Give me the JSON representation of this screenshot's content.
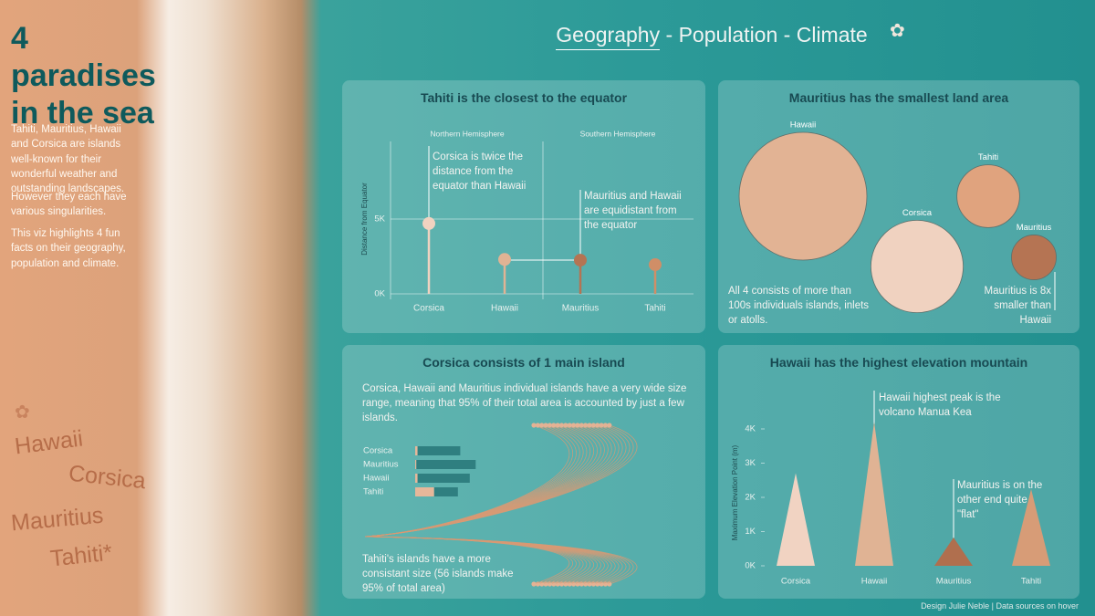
{
  "nav": {
    "items": [
      "Geography",
      "Population",
      "Climate"
    ],
    "separator": "-"
  },
  "sidebar": {
    "title": "4 paradises in the sea",
    "paragraphs": [
      "Tahiti, Mauritius, Hawaii and Corsica are islands well-known for their wonderful weather and outstanding landscapes.",
      "However they each have various singularities.",
      "This viz highlights 4 fun facts on their geography, population and climate."
    ],
    "islands": [
      "Hawaii",
      "Corsica",
      "Mauritius",
      "Tahiti*"
    ]
  },
  "chart_data": [
    {
      "type": "lollipop",
      "title": "Tahiti is the closest to the equator",
      "categories": [
        "Corsica",
        "Hawaii",
        "Mauritius",
        "Tahiti"
      ],
      "values": [
        4700,
        2300,
        2250,
        1950
      ],
      "colors": [
        "#f0d2c0",
        "#e0b394",
        "#b57453",
        "#d08e67"
      ],
      "y_label": "Distance from Equator",
      "ylim": [
        0,
        10000
      ],
      "yticks": [
        {
          "value": 0,
          "label": "0K"
        },
        {
          "value": 5000,
          "label": "5K"
        }
      ],
      "regions": [
        "Northern Hemisphere",
        "Southern Hemisphere"
      ],
      "annotations": [
        "Corsica is twice the distance from the equator than Hawaii",
        "Mauritius and Hawaii are equidistant from the equator"
      ]
    },
    {
      "type": "bubble",
      "title": "Mauritius has the smallest land area",
      "categories": [
        "Hawaii",
        "Tahiti",
        "Corsica",
        "Mauritius"
      ],
      "values": [
        16600,
        4000,
        8680,
        2040
      ],
      "colors": [
        "#e2b394",
        "#e0a37e",
        "#f0d2c0",
        "#b57453"
      ],
      "annotations": [
        "All 4 consists of more than 100s individuals islands, inlets or atolls.",
        "Mauritius is 8x smaller than Hawaii"
      ]
    },
    {
      "type": "bar",
      "title": "Corsica consists of 1 main island",
      "subtitle": "Corsica, Hawaii and Mauritius individual islands have a very wide size range, meaning that 95% of their total area is accounted by just a few islands.",
      "categories": [
        "Corsica",
        "Mauritius",
        "Hawaii",
        "Tahiti"
      ],
      "series": [
        {
          "color": "#e6b79a",
          "values": [
            2,
            1,
            2,
            16
          ]
        },
        {
          "color": "#2f7f80",
          "values": [
            36,
            50,
            44,
            20
          ]
        }
      ],
      "annotations": [
        "Tahiti's islands have a more consistant size (56 islands make 95% of total area)"
      ]
    },
    {
      "type": "triangle",
      "title": "Hawaii has the highest elevation mountain",
      "categories": [
        "Corsica",
        "Hawaii",
        "Mauritius",
        "Tahiti"
      ],
      "values": [
        2706,
        4207,
        828,
        2241
      ],
      "colors": [
        "#f1d3c2",
        "#e0b394",
        "#b06f4e",
        "#d79c77"
      ],
      "y_label": "Maximum Elevation Point (m)",
      "ylim": [
        0,
        4600
      ],
      "yticks": [
        {
          "value": 0,
          "label": "0K"
        },
        {
          "value": 1000,
          "label": "1K"
        },
        {
          "value": 2000,
          "label": "2K"
        },
        {
          "value": 3000,
          "label": "3K"
        },
        {
          "value": 4000,
          "label": "4K"
        }
      ],
      "annotations": [
        "Hawaii highest peak is the volcano Manua Kea",
        "Mauritius is on the other end quite \"flat\""
      ]
    }
  ],
  "footer": "Design Julie Neble | Data sources on hover"
}
